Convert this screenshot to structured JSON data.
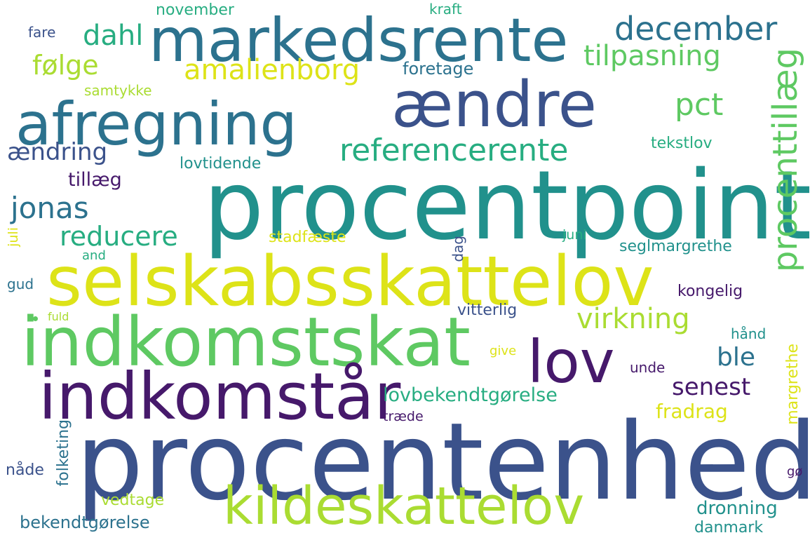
{
  "words": {
    "procentenhed": "procentenhed",
    "procentpoint": "procentpoint",
    "selskabsskattelov": "selskabsskattelov",
    "indkomstskat": "indkomstskat",
    "indkomstaar": "indkomstår",
    "markedsrente": "markedsrente",
    "aendre": "ændre",
    "afregning": "afregning",
    "kildeskattelov": "kildeskattelov",
    "lov": "lov",
    "procenttillaeg": "procenttillæg",
    "december": "december",
    "referencerente": "referencerente",
    "tilpasning": "tilpasning",
    "amalienborg": "amalienborg",
    "dahl": "dahl",
    "foelge": "følge",
    "pct": "pct",
    "jonas": "jonas",
    "aendring": "ændring",
    "reducere": "reducere",
    "virkning": "virkning",
    "senest": "senest",
    "ble": "ble",
    "fradrag": "fradrag",
    "lovbekendtgoerelse": "lovbekendtgørelse",
    "dronning": "dronning",
    "bekendtgoerelse": "bekendtgørelse",
    "vedtage": "vedtage",
    "danmark": "danmark",
    "margrethe": "margrethe",
    "folketing": "folketing",
    "naade": "nåde",
    "trade": "træde",
    "unde": "unde",
    "give": "give",
    "haand": "hånd",
    "kongelig": "kongelig",
    "vitterlig": "vitterlig",
    "seglmargrethe": "seglmargrethe",
    "juni": "juni",
    "dag": "dag",
    "stadfaeste": "stadfæste",
    "tillaeg": "tillæg",
    "lovtidende": "lovtidende",
    "tekstlov": "tekstlov",
    "samtykke": "samtykke",
    "foretage": "foretage",
    "november": "november",
    "kraft": "kraft",
    "fare": "fare",
    "juli": "juli",
    "and": "and",
    "gud": "gud",
    "fuld": "fuld",
    "go": "gø"
  },
  "colors": {
    "dark_purple": "#46196b",
    "indigo": "#3b528b",
    "blue": "#2c728e",
    "teal": "#21918c",
    "green": "#27ad81",
    "light_green": "#5ec962",
    "lime": "#aadc32",
    "yellow": "#dde318"
  }
}
